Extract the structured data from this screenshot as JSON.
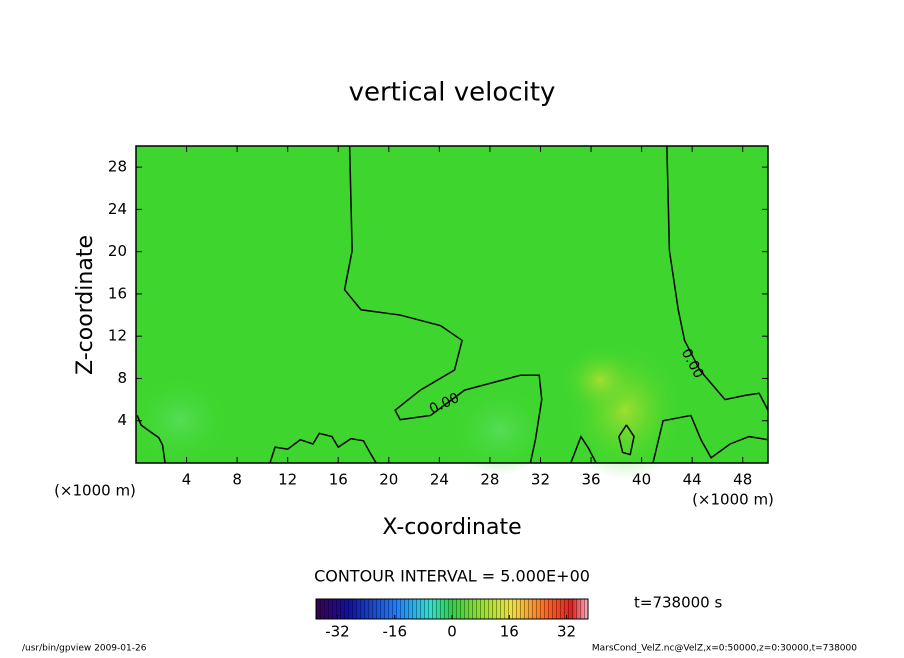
{
  "chart_data": {
    "type": "contour",
    "title": "vertical velocity",
    "xlabel": "X-coordinate",
    "ylabel": "Z-coordinate",
    "x_unit": "(×1000 m)",
    "y_unit": "(×1000 m)",
    "xlim": [
      0,
      50
    ],
    "ylim": [
      0,
      30
    ],
    "xticks": [
      4,
      8,
      12,
      16,
      20,
      24,
      28,
      32,
      36,
      40,
      44,
      48
    ],
    "yticks": [
      4,
      8,
      12,
      16,
      20,
      24,
      28
    ],
    "background_color": "#3ed62e",
    "line_color": "#000000",
    "contours": [
      {
        "level": 0,
        "x": [
          16.9,
          17.1,
          16.5,
          17.8,
          20.9,
          24.1,
          25.8,
          25.2,
          22.5,
          20.5,
          20.9,
          23.3,
          26,
          30.4,
          31.9,
          32.1,
          31.6,
          31.2
        ],
        "y": [
          30,
          20.1,
          16.4,
          14.5,
          14,
          13,
          11.6,
          8.8,
          6.9,
          5,
          4.1,
          4.5,
          6.9,
          8.3,
          8.3,
          6,
          2.2,
          0
        ]
      },
      {
        "level": 0,
        "x": [
          42,
          42.2,
          42.9,
          43.4,
          44.6,
          46.6,
          48.2,
          49.3,
          50
        ],
        "y": [
          30,
          20.1,
          14.5,
          11.6,
          8.8,
          6,
          6.4,
          6.6,
          5
        ]
      },
      {
        "level": 0,
        "x": [
          0.1,
          0.4,
          1.2,
          1.8,
          2.1,
          2.3
        ],
        "y": [
          4.5,
          3.6,
          2.9,
          2.4,
          1.7,
          0
        ]
      },
      {
        "level": 0,
        "x": [
          10.6,
          11,
          12,
          13,
          14,
          14.5,
          15.5,
          16,
          17,
          18,
          18.5,
          19
        ],
        "y": [
          0,
          1.5,
          1.3,
          2.2,
          1.8,
          2.8,
          2.5,
          1.5,
          2.3,
          2.1,
          1,
          0
        ]
      },
      {
        "level": 0,
        "x": [
          38.8,
          39.4,
          39.1,
          38.5,
          38.2,
          38.8
        ],
        "y": [
          3.6,
          2.5,
          0.8,
          1,
          2.5,
          3.6
        ]
      },
      {
        "level": 0,
        "x": [
          40.9,
          41.7,
          43.9,
          44.7,
          45.5,
          47,
          48.5,
          50
        ],
        "y": [
          0,
          4,
          4.5,
          2.2,
          0.5,
          1.8,
          2.5,
          2.2
        ]
      },
      {
        "level": 0,
        "x": [
          34.4,
          35.2,
          35.8,
          36.4
        ],
        "y": [
          0,
          2.5,
          1.4,
          0
        ]
      }
    ],
    "contour_labels": [
      {
        "text": "0.00",
        "x": 24.4,
        "y": 5.6
      },
      {
        "text": "0.00",
        "x": 44,
        "y": 9.4
      }
    ],
    "colorbar": {
      "lim": [
        -38,
        38
      ],
      "ticks": [
        -32,
        -16,
        0,
        16,
        32
      ]
    },
    "contour_interval": "CONTOUR INTERVAL = 5.000E+00",
    "time": "t=738000 s",
    "footer_left": "/usr/bin/gpview   2009-01-26",
    "footer_right": "MarsCond_VelZ.nc@VelZ,x=0:50000,z=0:30000,t=738000"
  }
}
